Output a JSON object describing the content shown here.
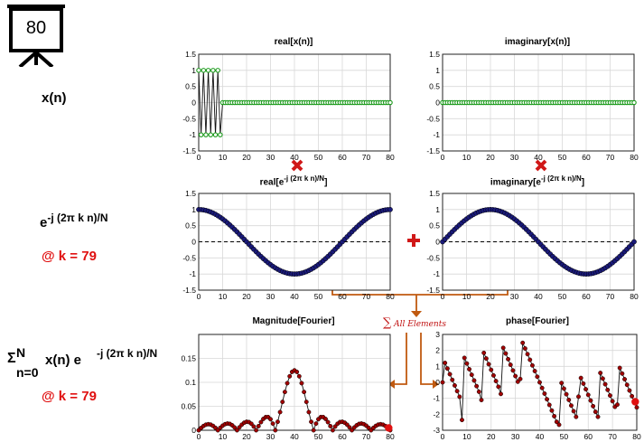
{
  "badge": {
    "value": "80",
    "icon": "presentation-board-icon"
  },
  "labels": {
    "xn": "x(n)",
    "exp_base": "e",
    "exp_power": "-j (2π k n)/N",
    "k_eq_1": "@ k = 79",
    "sum_sigma": "Σ",
    "sum_upper": "N",
    "sum_lower": "n=0",
    "sum_body": " x(n) e",
    "sum_power": "-j (2π k n)/N",
    "k_eq_2": "@ k = 79",
    "all_elements": "All Elements",
    "times_icon": "multiply-icon",
    "plus_icon": "plus-icon"
  },
  "plot_titles": {
    "real_x": "real[x(n)]",
    "imag_x": "imaginary[x(n)]",
    "real_e_pre": "real[e",
    "real_e_sup": "-j (2π k n)/N",
    "real_e_post": "]",
    "imag_e_pre": "imaginary[e",
    "imag_e_sup": "-j (2π k n)/N",
    "imag_e_post": "]",
    "magnitude": "Magnitude[Fourier]",
    "phase": "phase[Fourier]"
  },
  "colors": {
    "accent_red": "#e01010",
    "green_marker": "#1a9a1a",
    "navy_marker": "#1a1a7a",
    "dark_red_marker": "#a00000",
    "arrow_orange": "#c05a10"
  },
  "chart_data": [
    {
      "id": "real_x",
      "type": "line",
      "title": "real[x(n)]",
      "xlim": [
        0,
        80
      ],
      "ylim": [
        -1.5,
        1.5
      ],
      "xticks": [
        0,
        10,
        20,
        30,
        40,
        50,
        60,
        70,
        80
      ],
      "yticks": [
        -1.5,
        -1,
        -0.5,
        0,
        0.5,
        1,
        1.5
      ],
      "grid": true,
      "x_range": [
        0,
        80
      ],
      "values_desc": "x(n) = (-1)^n for n = 0..9, 0 otherwise",
      "pulse_length": 10
    },
    {
      "id": "imag_x",
      "type": "line",
      "title": "imaginary[x(n)]",
      "xlim": [
        0,
        80
      ],
      "ylim": [
        -1.5,
        1.5
      ],
      "xticks": [
        0,
        10,
        20,
        30,
        40,
        50,
        60,
        70,
        80
      ],
      "yticks": [
        -1.5,
        -1,
        -0.5,
        0,
        0.5,
        1,
        1.5
      ],
      "grid": true,
      "x_range": [
        0,
        80
      ],
      "constant": 0
    },
    {
      "id": "real_e",
      "type": "line",
      "title": "real[e^-j(2πkn)/N]",
      "xlim": [
        0,
        80
      ],
      "ylim": [
        -1.5,
        1.5
      ],
      "xticks": [
        0,
        10,
        20,
        30,
        40,
        50,
        60,
        70,
        80
      ],
      "yticks": [
        -1.5,
        -1,
        -0.5,
        0,
        0.5,
        1,
        1.5
      ],
      "grid": true,
      "k": 79,
      "N": 80,
      "fn": "cos"
    },
    {
      "id": "imag_e",
      "type": "line",
      "title": "imaginary[e^-j(2πkn)/N]",
      "xlim": [
        0,
        80
      ],
      "ylim": [
        -1.5,
        1.5
      ],
      "xticks": [
        0,
        10,
        20,
        30,
        40,
        50,
        60,
        70,
        80
      ],
      "yticks": [
        -1.5,
        -1,
        -0.5,
        0,
        0.5,
        1,
        1.5
      ],
      "grid": true,
      "k": 79,
      "N": 80,
      "fn": "neg_sin"
    },
    {
      "id": "magnitude",
      "type": "line",
      "title": "Magnitude[Fourier]",
      "xlim": [
        0,
        80
      ],
      "ylim": [
        0,
        0.2
      ],
      "xticks": [
        0,
        10,
        20,
        30,
        40,
        50,
        60,
        70,
        80
      ],
      "yticks": [
        0,
        0.05,
        0.1,
        0.15
      ],
      "grid": true,
      "highlight_k": 79,
      "fn": "dft_mag"
    },
    {
      "id": "phase",
      "type": "line",
      "title": "phase[Fourier]",
      "xlim": [
        0,
        80
      ],
      "ylim": [
        -3,
        3
      ],
      "xticks": [
        0,
        10,
        20,
        30,
        40,
        50,
        60,
        70,
        80
      ],
      "yticks": [
        -3,
        -2,
        -1,
        0,
        1,
        2,
        3
      ],
      "grid": true,
      "highlight_k": 79,
      "fn": "dft_phase"
    }
  ]
}
